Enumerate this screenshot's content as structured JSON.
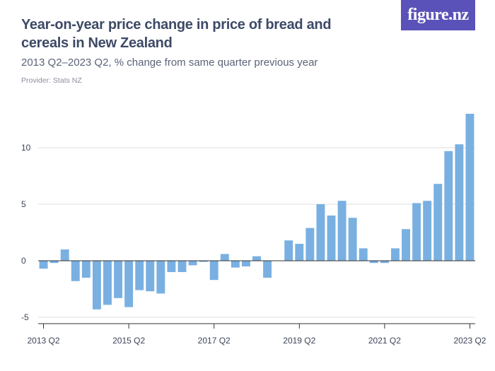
{
  "header": {
    "title": "Year-on-year price change in price of bread and cereals in New Zealand",
    "subtitle": "2013 Q2–2023 Q2, % change from same quarter previous year",
    "provider": "Provider: Stats NZ",
    "logo": "figure.nz"
  },
  "colors": {
    "bar": "#79b0e1",
    "grid": "#dcdcdc",
    "axis": "#333333"
  },
  "chart_data": {
    "type": "bar",
    "title": "Year-on-year price change in price of bread and cereals in New Zealand",
    "subtitle": "2013 Q2–2023 Q2, % change from same quarter previous year",
    "xlabel": "",
    "ylabel": "",
    "ylim": [
      -5.5,
      14
    ],
    "yticks": [
      -5,
      0,
      5,
      10
    ],
    "x_tick_labels": [
      "2013 Q2",
      "2015 Q2",
      "2017 Q2",
      "2019 Q2",
      "2021 Q2",
      "2023 Q2"
    ],
    "x_tick_label_categories": [
      "2013 Q2",
      "2015 Q2",
      "2017 Q2",
      "2019 Q2",
      "2021 Q2",
      "2023 Q2"
    ],
    "grid": true,
    "categories": [
      "2013 Q2",
      "2013 Q3",
      "2013 Q4",
      "2014 Q1",
      "2014 Q2",
      "2014 Q3",
      "2014 Q4",
      "2015 Q1",
      "2015 Q2",
      "2015 Q3",
      "2015 Q4",
      "2016 Q1",
      "2016 Q2",
      "2016 Q3",
      "2016 Q4",
      "2017 Q1",
      "2017 Q2",
      "2017 Q3",
      "2017 Q4",
      "2018 Q1",
      "2018 Q2",
      "2018 Q3",
      "2018 Q4",
      "2019 Q1",
      "2019 Q2",
      "2019 Q3",
      "2019 Q4",
      "2020 Q1",
      "2020 Q2",
      "2020 Q3",
      "2020 Q4",
      "2021 Q1",
      "2021 Q2",
      "2021 Q3",
      "2021 Q4",
      "2022 Q1",
      "2022 Q2",
      "2022 Q3",
      "2022 Q4",
      "2023 Q1",
      "2023 Q2"
    ],
    "values": [
      -0.7,
      -0.2,
      1.0,
      -1.8,
      -1.5,
      -4.3,
      -3.9,
      -3.3,
      -4.1,
      -2.6,
      -2.7,
      -2.9,
      -1.0,
      -1.0,
      -0.4,
      -0.1,
      -1.7,
      0.6,
      -0.6,
      -0.5,
      0.4,
      -1.5,
      0.0,
      1.8,
      1.5,
      2.9,
      5.0,
      4.0,
      5.3,
      3.8,
      1.1,
      -0.2,
      -0.2,
      1.1,
      2.8,
      5.1,
      5.3,
      6.8,
      9.7,
      10.3,
      13.0
    ]
  }
}
